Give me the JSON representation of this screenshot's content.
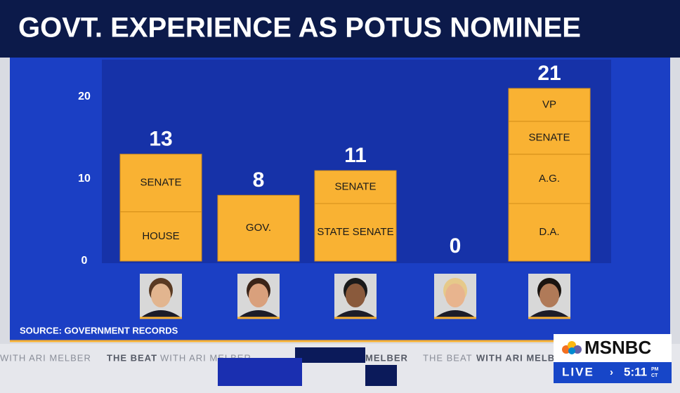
{
  "chart_data": {
    "type": "bar",
    "stacked": true,
    "title": "GOVT. EXPERIENCE AS POTUS NOMINEE",
    "source": "SOURCE: GOVERNMENT RECORDS",
    "categories": [
      null,
      null,
      null,
      null,
      null
    ],
    "totals": [
      13,
      8,
      11,
      0,
      21
    ],
    "bars": [
      {
        "segments": [
          {
            "label": "HOUSE",
            "value": 6
          },
          {
            "label": "SENATE",
            "value": 7
          }
        ]
      },
      {
        "segments": [
          {
            "label": "GOV.",
            "value": 8
          }
        ]
      },
      {
        "segments": [
          {
            "label": "STATE SENATE",
            "value": 7
          },
          {
            "label": "SENATE",
            "value": 4
          }
        ]
      },
      {
        "segments": []
      },
      {
        "segments": [
          {
            "label": "D.A.",
            "value": 7
          },
          {
            "label": "A.G.",
            "value": 6
          },
          {
            "label": "SENATE",
            "value": 4
          },
          {
            "label": "VP",
            "value": 4
          }
        ]
      }
    ],
    "color": "#f9b233",
    "ylim": [
      0,
      24.5
    ],
    "yticks": [
      0,
      10,
      20
    ]
  },
  "overlay": {
    "ticker": [
      "WITH ARI MELBER",
      "THE BEAT",
      "WITH ARI MELBER",
      "MELBER",
      "THE BEAT",
      "WITH ARI MELBER"
    ],
    "network": "MSNBC",
    "live": "LIVE",
    "time": "5:11",
    "ampm": "PM",
    "zone": "CT"
  }
}
